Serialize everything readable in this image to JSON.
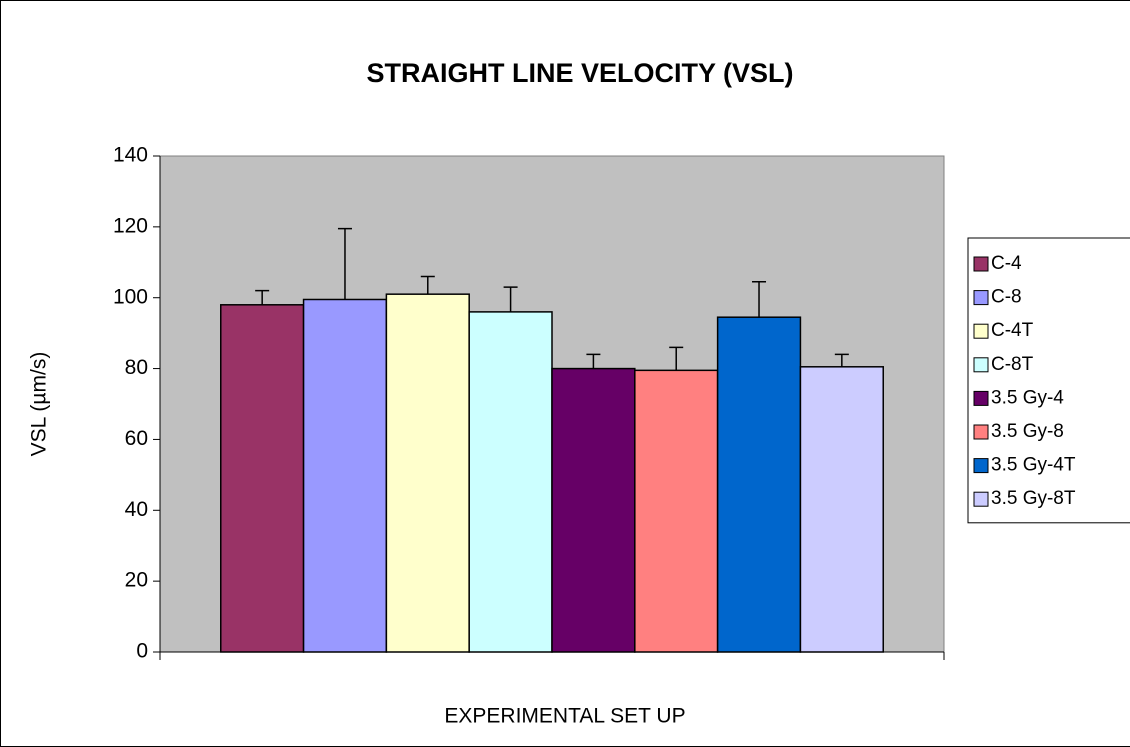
{
  "chart_data": {
    "type": "bar",
    "title": "STRAIGHT LINE VELOCITY (VSL)",
    "x_label": "EXPERIMENTAL SET UP",
    "y_label": "VSL (µm/s)",
    "categories": [
      null
    ],
    "series": [
      {
        "name": "C-4",
        "color": "#993366",
        "values": [
          98
        ],
        "errors": [
          4
        ]
      },
      {
        "name": "C-8",
        "color": "#9999ff",
        "values": [
          99.5
        ],
        "errors": [
          20
        ]
      },
      {
        "name": "C-4T",
        "color": "#ffffcc",
        "values": [
          101
        ],
        "errors": [
          5
        ]
      },
      {
        "name": "C-8T",
        "color": "#ccffff",
        "values": [
          96
        ],
        "errors": [
          7
        ]
      },
      {
        "name": "3.5 Gy-4",
        "color": "#660066",
        "values": [
          80
        ],
        "errors": [
          4
        ]
      },
      {
        "name": "3.5 Gy-8",
        "color": "#ff8080",
        "values": [
          79.5
        ],
        "errors": [
          6.5
        ]
      },
      {
        "name": "3.5 Gy-4T",
        "color": "#0066cc",
        "values": [
          94.5
        ],
        "errors": [
          10
        ]
      },
      {
        "name": "3.5 Gy-8T",
        "color": "#ccccff",
        "values": [
          80.5
        ],
        "errors": [
          3.5
        ]
      }
    ],
    "ylim": [
      0,
      140
    ],
    "yticks": [
      0,
      20,
      40,
      60,
      80,
      100,
      120,
      140
    ],
    "plot_background": "#c0c0c0",
    "legend": "right"
  }
}
